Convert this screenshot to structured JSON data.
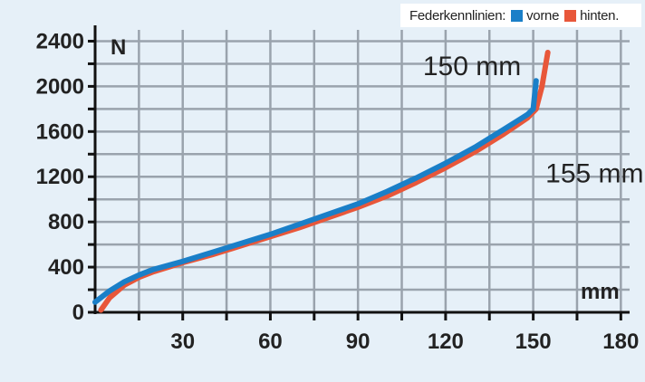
{
  "legend": {
    "title": "Federkennlinien:",
    "items": [
      {
        "label": "vorne",
        "color": "#1a7fc8"
      },
      {
        "label": "hinten.",
        "color": "#e8573a"
      }
    ]
  },
  "chart_data": {
    "type": "line",
    "title": "Federkennlinien:",
    "xlabel": "mm",
    "ylabel": "N",
    "xlim": [
      0,
      183
    ],
    "ylim": [
      0,
      2500
    ],
    "grid": true,
    "legend_position": "top-right",
    "x_ticks": [
      30,
      60,
      90,
      120,
      150,
      180
    ],
    "y_ticks": [
      0,
      400,
      800,
      1200,
      1600,
      2000,
      2400
    ],
    "series": [
      {
        "name": "vorne",
        "color": "#1a7fc8",
        "x": [
          0,
          5,
          10,
          15,
          20,
          30,
          40,
          50,
          60,
          70,
          80,
          90,
          100,
          110,
          120,
          130,
          140,
          148,
          150,
          151
        ],
        "y": [
          90,
          190,
          270,
          330,
          380,
          450,
          530,
          610,
          690,
          780,
          870,
          960,
          1070,
          1190,
          1320,
          1460,
          1620,
          1750,
          1800,
          2050
        ]
      },
      {
        "name": "hinten.",
        "color": "#e8573a",
        "x": [
          2,
          5,
          10,
          15,
          20,
          30,
          40,
          50,
          60,
          70,
          80,
          90,
          100,
          110,
          120,
          130,
          140,
          148,
          151,
          153,
          155
        ],
        "y": [
          20,
          130,
          240,
          310,
          360,
          440,
          510,
          590,
          670,
          750,
          840,
          930,
          1030,
          1150,
          1280,
          1420,
          1580,
          1720,
          1800,
          2000,
          2300
        ]
      }
    ],
    "annotations": [
      {
        "text": "150 mm",
        "x": 120,
        "y": 2180
      },
      {
        "text": "155 mm",
        "x": 148,
        "y": 1360
      }
    ]
  }
}
